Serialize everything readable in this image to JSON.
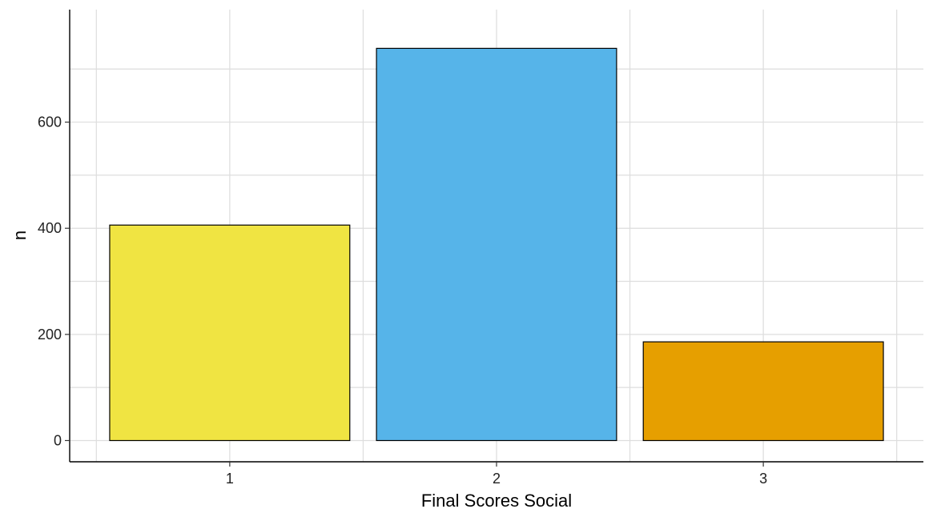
{
  "chart_data": {
    "type": "bar",
    "title": "",
    "xlabel": "Final Scores Social",
    "ylabel": "n",
    "categories": [
      "1",
      "2",
      "3"
    ],
    "values": [
      406,
      739,
      186
    ],
    "ylim": [
      -40,
      812
    ],
    "yticks": [
      0,
      200,
      400,
      600
    ],
    "ytick_labels": [
      "0",
      "200",
      "400",
      "600"
    ],
    "grid": true,
    "legend": "none",
    "colors": {
      "bars": [
        "#F0E442",
        "#56B4E9",
        "#E69F00"
      ],
      "bar_outline": "#000000",
      "grid": "#dddddd",
      "axis": "#000000"
    }
  }
}
